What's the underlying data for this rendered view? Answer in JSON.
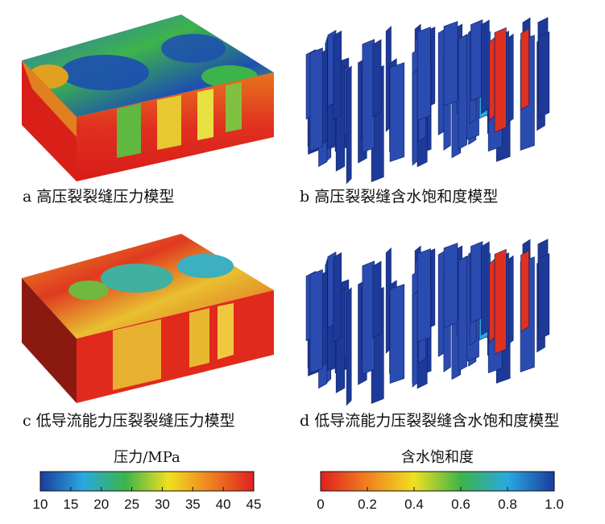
{
  "panels": [
    {
      "caption": "a 高压裂裂缝压力模型"
    },
    {
      "caption": "b 高压裂裂缝含水饱和度模型"
    },
    {
      "caption": "c 低导流能力压裂裂缝压力模型"
    },
    {
      "caption": "d 低导流能力压裂裂缝含水饱和度模型"
    }
  ],
  "colorbars": [
    {
      "label": "压力/MPa",
      "lim": [
        10,
        45
      ],
      "ticks": [
        10,
        15,
        20,
        25,
        30,
        35,
        40,
        45
      ],
      "colors": [
        "#1a3c9e",
        "#2aa8e0",
        "#3cb44a",
        "#f0e020",
        "#f08020",
        "#e02020"
      ]
    },
    {
      "label": "含水饱和度",
      "lim": [
        0,
        1
      ],
      "ticks": [
        0,
        0.2,
        0.4,
        0.6,
        0.8,
        {
          "value": 1,
          "label": "1.0"
        }
      ],
      "colors": [
        "#e02020",
        "#f08020",
        "#f0e020",
        "#3cb44a",
        "#2aa8e0",
        "#1a3c9e"
      ]
    }
  ]
}
